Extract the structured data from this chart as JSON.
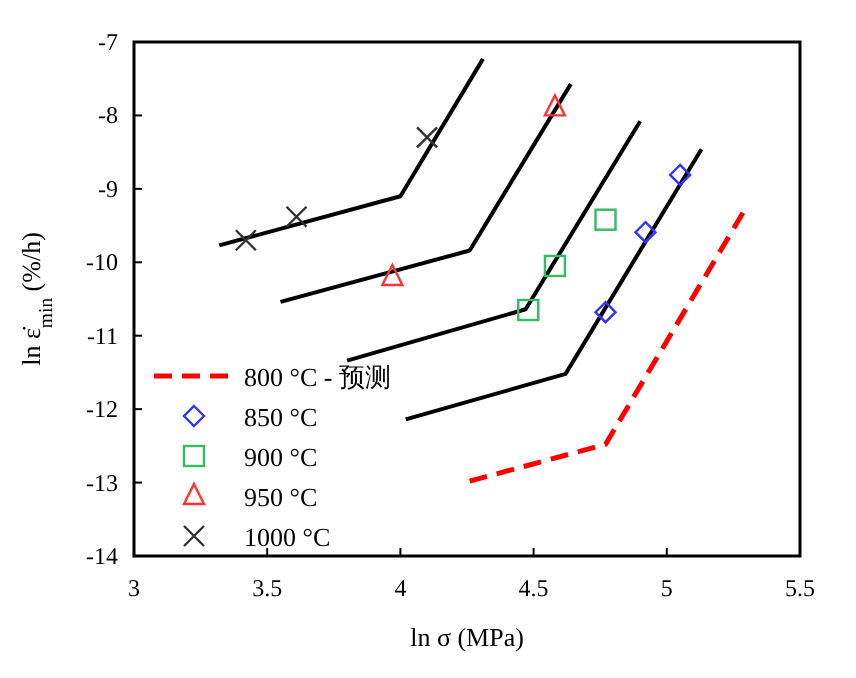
{
  "chart_data": {
    "type": "scatter",
    "xlabel": "ln σ (MPa)",
    "ylabel": "ln ε̇$_{min}$ (%/h)",
    "xlim": [
      3,
      5.5
    ],
    "xticks": [
      3,
      3.5,
      4,
      4.5,
      5,
      5.5
    ],
    "ylim": [
      -14,
      -7
    ],
    "yticks": [
      -14,
      -13,
      -12,
      -11,
      -10,
      -9,
      -8,
      -7
    ],
    "grid": false,
    "legend": "bottom left",
    "series": [
      {
        "name": "800 °C - 预测",
        "type": "line",
        "line_style": "dashed",
        "marker": "none",
        "color": "#ff0000",
        "x": [
          4.26,
          4.77,
          5.3
        ],
        "values": [
          -12.98,
          -12.48,
          -9.24
        ]
      },
      {
        "name": "850 °C",
        "type": "scatter",
        "marker": "diamond",
        "color": "#3333ff",
        "x": [
          4.77,
          4.92,
          5.05
        ],
        "values": [
          -10.68,
          -9.59,
          -8.81
        ]
      },
      {
        "name": "900 °C",
        "type": "scatter",
        "marker": "square",
        "color": "#33bb66",
        "x": [
          4.48,
          4.58,
          4.77
        ],
        "values": [
          -10.65,
          -10.05,
          -9.42
        ]
      },
      {
        "name": "950 °C",
        "type": "scatter",
        "marker": "triangle",
        "color": "#ff3333",
        "x": [
          3.97,
          4.58
        ],
        "values": [
          -10.2,
          -7.89
        ]
      },
      {
        "name": "1000 °C",
        "type": "scatter",
        "marker": "cross",
        "color": "#333333",
        "x": [
          3.42,
          3.61,
          4.1
        ],
        "values": [
          -9.7,
          -9.38,
          -8.3
        ]
      },
      {
        "type": "line",
        "line_style": "solid",
        "marker": "none",
        "color": "#000000",
        "x": [
          4.02,
          4.62,
          5.13
        ],
        "values": [
          -12.14,
          -11.52,
          -8.46
        ]
      },
      {
        "type": "line",
        "line_style": "solid",
        "marker": "none",
        "color": "#000000",
        "x": [
          3.8,
          4.47,
          4.9
        ],
        "values": [
          -11.34,
          -10.64,
          -8.08
        ]
      },
      {
        "type": "line",
        "line_style": "solid",
        "marker": "none",
        "color": "#000000",
        "x": [
          3.55,
          4.26,
          4.64
        ],
        "values": [
          -10.54,
          -9.84,
          -7.57
        ]
      },
      {
        "type": "line",
        "line_style": "solid",
        "marker": "none",
        "color": "#000000",
        "x": [
          3.32,
          4.0,
          4.31
        ],
        "values": [
          -9.77,
          -9.1,
          -7.23
        ]
      }
    ]
  }
}
